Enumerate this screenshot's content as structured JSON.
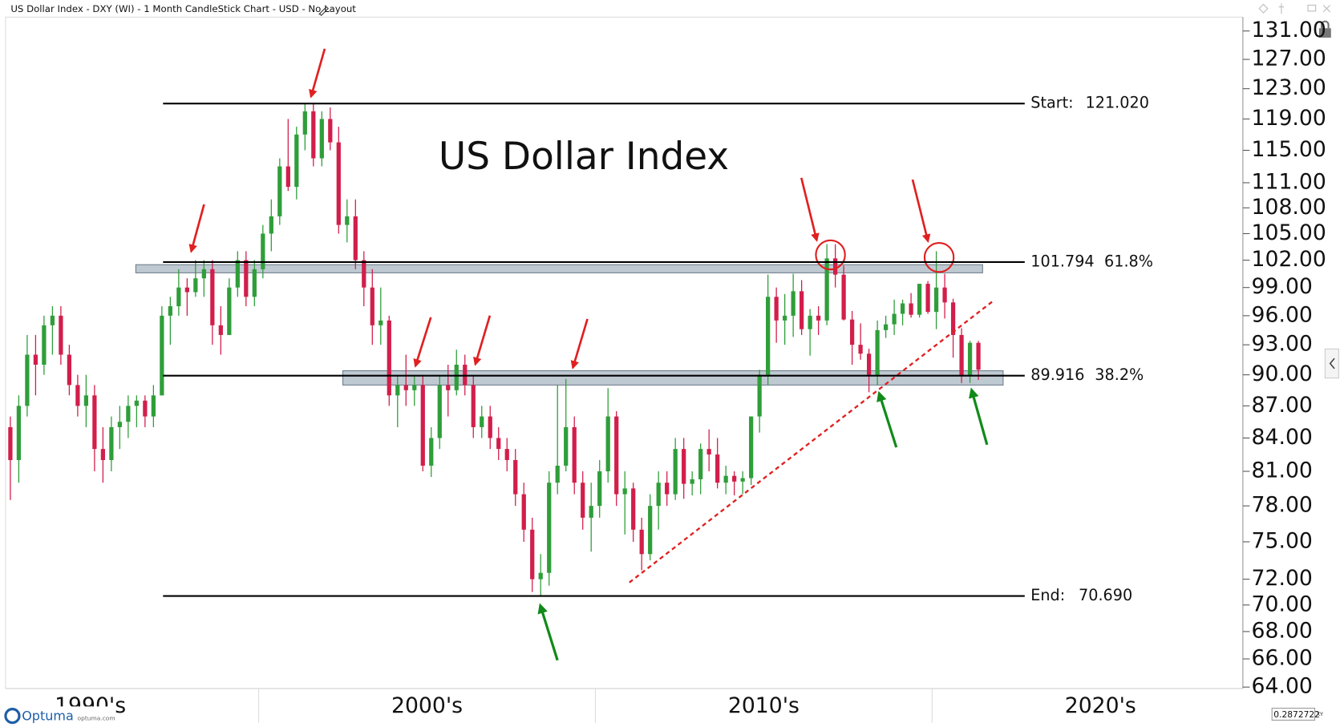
{
  "header": "US Dollar Index - DXY (WI) - 1 Month CandleStick Chart - USD - No Layout",
  "chart_data": {
    "type": "candlestick",
    "title": "US Dollar Index",
    "log_scale": true,
    "up_color": "#2f9e3a",
    "down_color": "#d21e4b",
    "ylim": [
      63.9,
      133
    ],
    "yticks": [
      {
        "value": 131,
        "label": "131.00"
      },
      {
        "value": 127,
        "label": "127.00"
      },
      {
        "value": 123,
        "label": "123.00"
      },
      {
        "value": 119,
        "label": "119.00"
      },
      {
        "value": 115,
        "label": "115.00"
      },
      {
        "value": 111,
        "label": "111.00"
      },
      {
        "value": 108,
        "label": "108.00"
      },
      {
        "value": 105,
        "label": "105.00"
      },
      {
        "value": 102,
        "label": "102.00"
      },
      {
        "value": 99,
        "label": "99.00"
      },
      {
        "value": 96,
        "label": "96.00"
      },
      {
        "value": 93,
        "label": "93.00"
      },
      {
        "value": 90,
        "label": "90.00"
      },
      {
        "value": 87,
        "label": "87.00"
      },
      {
        "value": 84,
        "label": "84.00"
      },
      {
        "value": 81,
        "label": "81.00"
      },
      {
        "value": 78,
        "label": "78.00"
      },
      {
        "value": 75,
        "label": "75.00"
      },
      {
        "value": 72,
        "label": "72.00"
      },
      {
        "value": 70,
        "label": "70.00"
      },
      {
        "value": 68,
        "label": "68.00"
      },
      {
        "value": 66,
        "label": "66.00"
      },
      {
        "value": 64,
        "label": "64.00"
      }
    ],
    "xlim": [
      1992.33,
      2029.23
    ],
    "xticks": [
      {
        "value": 1995,
        "label": "1990's"
      },
      {
        "value": 2005,
        "label": "2000's"
      },
      {
        "value": 2015,
        "label": "2010's"
      },
      {
        "value": 2025,
        "label": "2020's"
      }
    ],
    "x_separators": [
      2000,
      2010,
      2020
    ],
    "x": [
      1992.625,
      1992.875,
      1993.125,
      1993.375,
      1993.625,
      1993.875,
      1994.125,
      1994.375,
      1994.625,
      1994.875,
      1995.125,
      1995.375,
      1995.625,
      1995.875,
      1996.125,
      1996.375,
      1996.625,
      1996.875,
      1997.125,
      1997.375,
      1997.625,
      1997.875,
      1998.125,
      1998.375,
      1998.625,
      1998.875,
      1999.125,
      1999.375,
      1999.625,
      1999.875,
      2000.125,
      2000.375,
      2000.625,
      2000.875,
      2001.125,
      2001.375,
      2001.625,
      2001.875,
      2002.125,
      2002.375,
      2002.625,
      2002.875,
      2003.125,
      2003.375,
      2003.625,
      2003.875,
      2004.125,
      2004.375,
      2004.625,
      2004.875,
      2005.125,
      2005.375,
      2005.625,
      2005.875,
      2006.125,
      2006.375,
      2006.625,
      2006.875,
      2007.125,
      2007.375,
      2007.625,
      2007.875,
      2008.125,
      2008.375,
      2008.625,
      2008.875,
      2009.125,
      2009.375,
      2009.625,
      2009.875,
      2010.125,
      2010.375,
      2010.625,
      2010.875,
      2011.125,
      2011.375,
      2011.625,
      2011.875,
      2012.125,
      2012.375,
      2012.625,
      2012.875,
      2013.125,
      2013.375,
      2013.625,
      2013.875,
      2014.125,
      2014.375,
      2014.625,
      2014.875,
      2015.125,
      2015.375,
      2015.625,
      2015.875,
      2016.125,
      2016.375,
      2016.625,
      2016.875,
      2017.125,
      2017.375,
      2017.625,
      2017.875,
      2018.125,
      2018.375,
      2018.625,
      2018.875,
      2019.125,
      2019.375,
      2019.625,
      2019.875,
      2020.125,
      2020.375,
      2020.625,
      2020.875,
      2021.125,
      2021.375
    ],
    "open": [
      85,
      82,
      87,
      92,
      91,
      95,
      96,
      92,
      89,
      87,
      88,
      83,
      82,
      85,
      85.5,
      87,
      87.5,
      86,
      88,
      96,
      97,
      99,
      98.5,
      100,
      101,
      95,
      94,
      99,
      102,
      98,
      101,
      105,
      107,
      113,
      110.5,
      117,
      120,
      114,
      119,
      116,
      106,
      107,
      102,
      99,
      95,
      95.5,
      88,
      89,
      88.5,
      89,
      81.5,
      84,
      89,
      88.5,
      91,
      89,
      85,
      86,
      84,
      83,
      82,
      79,
      76,
      72,
      72.5,
      80,
      81.5,
      85,
      80,
      77,
      78,
      81,
      86,
      79,
      79.5,
      76,
      74,
      78,
      80,
      79,
      83,
      79.9,
      80.3,
      83,
      82.5,
      80,
      80.6,
      80.1,
      80.4,
      86,
      90,
      98,
      95.5,
      96,
      98.6,
      94.6,
      96,
      95.5,
      102.2,
      100.4,
      95.6,
      93,
      92.1,
      90,
      94.5,
      95.1,
      96.2,
      97.3,
      96.1,
      99.4,
      96.4,
      99,
      97.4,
      94,
      89.9,
      93.2
    ],
    "high": [
      86,
      88,
      94,
      94,
      96,
      97,
      97,
      93,
      90,
      90,
      89,
      85,
      86,
      87,
      88,
      88,
      88,
      89,
      97,
      98,
      101,
      100,
      102,
      102,
      102,
      97,
      100,
      103,
      103,
      102,
      106,
      109,
      114,
      119,
      118,
      121,
      121.02,
      120,
      120.5,
      118,
      109,
      109,
      103,
      101,
      99,
      96,
      90,
      92,
      90,
      90,
      85,
      90,
      91,
      92.5,
      92,
      90,
      87,
      87,
      85,
      84,
      83,
      80,
      77,
      74,
      81,
      89,
      89.6,
      86,
      81,
      80,
      82,
      88.7,
      86.5,
      81,
      80,
      77,
      79,
      81,
      81,
      84,
      84,
      81,
      83.5,
      84.8,
      84,
      81.5,
      81,
      81,
      86,
      90.5,
      100.4,
      99,
      98.3,
      100.5,
      99.8,
      96.7,
      97,
      103.8,
      103.8,
      101.4,
      96.5,
      95.2,
      92.6,
      95.5,
      96,
      97.7,
      97.7,
      98.4,
      99.4,
      99.7,
      103,
      100.5,
      97.8,
      94.7,
      93.4,
      93.4
    ],
    "low": [
      78.5,
      80,
      86,
      88,
      90,
      92,
      91,
      88,
      86,
      85,
      81,
      80,
      81,
      83,
      84,
      85,
      85,
      85,
      88,
      93,
      96,
      96,
      98,
      98,
      93,
      92,
      94,
      98,
      97,
      97,
      100,
      103,
      106,
      110,
      109,
      115,
      113,
      113,
      115,
      105,
      104,
      101,
      97,
      93,
      93,
      87,
      85,
      87,
      87,
      81,
      80.5,
      83,
      86,
      88,
      88,
      84,
      84,
      83,
      82,
      81,
      78,
      75,
      71,
      70.69,
      71.5,
      79,
      81,
      79,
      76,
      74.2,
      77,
      80,
      78,
      75.6,
      75,
      72.7,
      73.5,
      76,
      78,
      78.5,
      78.6,
      78.9,
      79,
      81,
      79.5,
      79,
      78.9,
      79,
      79.8,
      84.5,
      89,
      93.2,
      93,
      93.8,
      94,
      91.9,
      94,
      95,
      99,
      95.5,
      91,
      91.5,
      88.3,
      89,
      93.7,
      94,
      95,
      95.8,
      95.8,
      96.2,
      94.6,
      95.7,
      91.7,
      89.2,
      89.2,
      89.5
    ],
    "close": [
      82,
      87,
      92,
      91,
      95,
      96,
      92,
      89,
      87,
      88,
      83,
      82,
      85,
      85.5,
      87,
      87.5,
      86,
      88,
      96,
      97,
      99,
      98.5,
      100,
      101,
      95,
      94,
      99,
      102,
      98,
      101,
      105,
      107,
      113,
      110.5,
      117,
      120,
      114,
      119,
      116,
      106,
      107,
      102,
      99,
      95,
      95.5,
      88,
      89,
      88.5,
      89,
      81.5,
      84,
      89,
      88.5,
      91,
      89,
      85,
      86,
      84,
      83,
      82,
      79,
      76,
      72,
      72.5,
      80,
      81.5,
      85,
      80,
      77,
      78,
      81,
      86,
      79,
      79.5,
      76,
      74,
      78,
      80,
      79,
      83,
      79.9,
      80.3,
      83,
      82.5,
      80,
      80.6,
      80.1,
      80.4,
      86,
      90,
      98,
      95.5,
      96,
      98.6,
      94.6,
      96,
      95.5,
      102.2,
      100.4,
      95.6,
      93,
      92.1,
      90,
      94.5,
      95.1,
      96.2,
      97.3,
      96.1,
      99.4,
      96.4,
      99,
      97.4,
      94,
      89.9,
      93.2,
      90.5
    ],
    "levels": [
      {
        "name": "Start:",
        "value": 121.02,
        "value_label": "121.020",
        "x": [
          1997.16,
          2022.75
        ]
      },
      {
        "value": 101.794,
        "value_label": "101.794",
        "ratio_label": "61.8%",
        "x": [
          1997.16,
          2022.75
        ]
      },
      {
        "value": 89.916,
        "value_label": "89.916",
        "ratio_label": "38.2%",
        "x": [
          1997.16,
          2022.75
        ]
      },
      {
        "name": "End:",
        "value": 70.69,
        "value_label": "70.690",
        "x": [
          1997.16,
          2022.75
        ]
      }
    ],
    "zones": [
      {
        "low": 100.6,
        "high": 101.5,
        "x": [
          1996.35,
          2021.5
        ]
      },
      {
        "low": 89.0,
        "high": 90.4,
        "x": [
          2002.5,
          2022.11
        ]
      }
    ]
  },
  "footer": {
    "brand": "Optuma",
    "site": "optuma.com",
    "cursor_value": "0.2872722",
    "cursor_mode": "XY"
  }
}
